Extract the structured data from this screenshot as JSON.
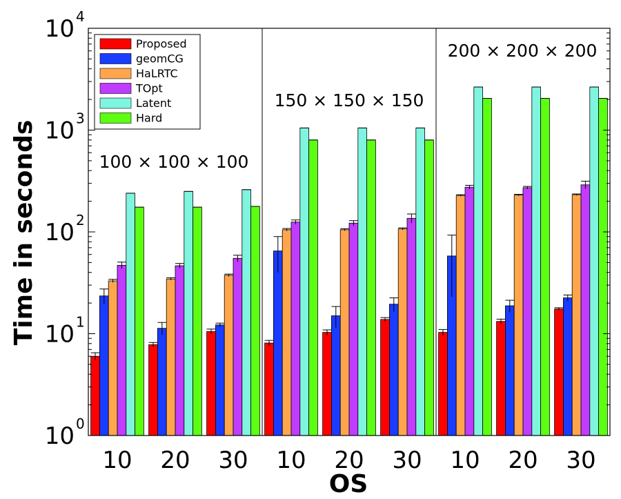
{
  "chart_data": {
    "type": "bar",
    "scale": "log",
    "ylim": [
      1,
      10000
    ],
    "ylabel": "Time in seconds",
    "xlabel": "OS",
    "yticks": [
      {
        "value": 1,
        "base": "10",
        "exp": "0"
      },
      {
        "value": 10,
        "base": "10",
        "exp": "1"
      },
      {
        "value": 100,
        "base": "10",
        "exp": "2"
      },
      {
        "value": 1000,
        "base": "10",
        "exp": "3"
      },
      {
        "value": 10000,
        "base": "10",
        "exp": "4"
      }
    ],
    "groups": [
      {
        "label": "100 × 100 × 100",
        "categories": [
          "10",
          "20",
          "30"
        ]
      },
      {
        "label": "150 × 150 × 150",
        "categories": [
          "10",
          "20",
          "30"
        ]
      },
      {
        "label": "200 × 200 × 200",
        "categories": [
          "10",
          "20",
          "30"
        ]
      }
    ],
    "legend_position": "top-left",
    "series": [
      {
        "name": "Proposed",
        "color": "#ff0000",
        "values": [
          6,
          7.8,
          10.5,
          8.1,
          10.3,
          13.8,
          10.3,
          13.2,
          17.5
        ],
        "errors": [
          0.5,
          0.4,
          0.6,
          0.5,
          0.6,
          0.6,
          0.7,
          0.7,
          0.5
        ]
      },
      {
        "name": "geomCG",
        "color": "#1a3cff",
        "values": [
          23.5,
          11.3,
          12.2,
          65,
          15,
          19.5,
          58,
          18.8,
          22.5
        ],
        "errors": [
          4,
          1.6,
          0.5,
          25,
          3.5,
          3,
          35,
          2.5,
          1.5
        ]
      },
      {
        "name": "HaLRTC",
        "color": "#ffa64d",
        "values": [
          33,
          34.5,
          37.5,
          105,
          105,
          107,
          228,
          230,
          232
        ],
        "errors": [
          1.2,
          1,
          1,
          3,
          2.5,
          2.5,
          4,
          4,
          4
        ]
      },
      {
        "name": "TOpt",
        "color": "#c03cff",
        "values": [
          47,
          46.5,
          55,
          125,
          122,
          136,
          275,
          272,
          290
        ],
        "errors": [
          3.5,
          2.5,
          4,
          6,
          7,
          14,
          12,
          8,
          25
        ]
      },
      {
        "name": "Latent",
        "color": "#7ff5e0",
        "values": [
          240,
          250,
          260,
          1050,
          1050,
          1050,
          2650,
          2650,
          2650
        ],
        "errors": [
          0,
          0,
          0,
          0,
          0,
          0,
          0,
          0,
          0
        ]
      },
      {
        "name": "Hard",
        "color": "#5cff12",
        "values": [
          175,
          175,
          178,
          800,
          800,
          800,
          2050,
          2050,
          2050
        ],
        "errors": [
          0,
          0,
          0,
          0,
          0,
          0,
          0,
          0,
          0
        ]
      }
    ]
  }
}
